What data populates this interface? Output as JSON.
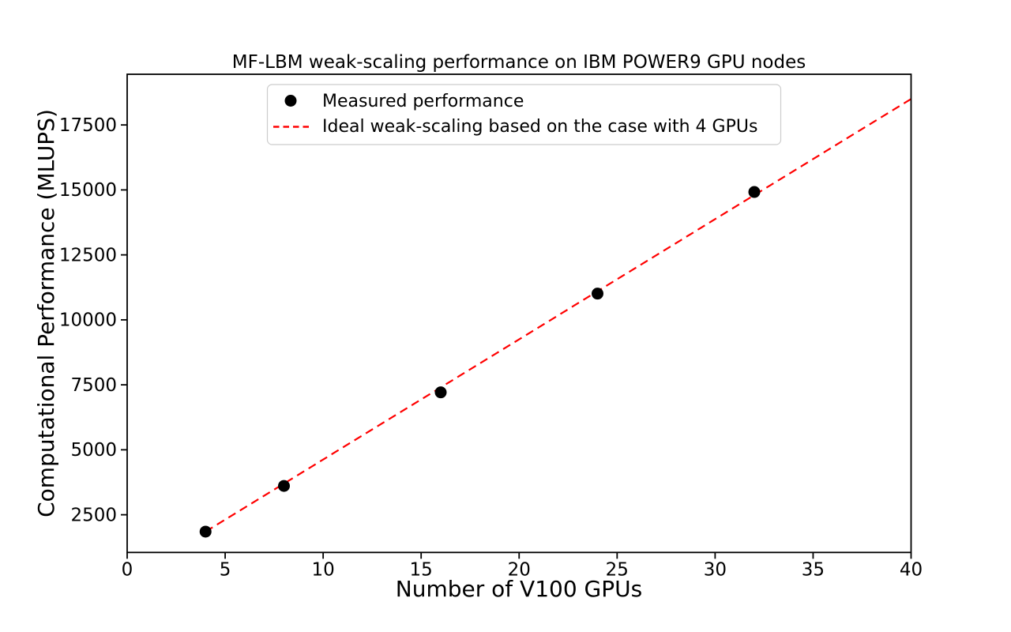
{
  "figure": {
    "background": "#ffffff",
    "axis_color": "#000000",
    "legend_border_color": "#cccccc"
  },
  "chart_data": {
    "type": "scatter",
    "title": "MF-LBM weak-scaling performance on IBM POWER9 GPU nodes",
    "xlabel": "Number of V100 GPUs",
    "ylabel": "Computational Performance (MLUPS)",
    "xlim": [
      0,
      40
    ],
    "ylim": [
      1050,
      19450
    ],
    "x_ticks": [
      0,
      5,
      10,
      15,
      20,
      25,
      30,
      35,
      40
    ],
    "y_ticks": [
      2500,
      5000,
      7500,
      10000,
      12500,
      15000,
      17500
    ],
    "grid": false,
    "legend_position": "upper center",
    "series": [
      {
        "name": "Measured performance",
        "plot_type": "scatter",
        "marker": "circle",
        "color": "#000000",
        "points": [
          [
            4,
            1850
          ],
          [
            8,
            3610
          ],
          [
            16,
            7210
          ],
          [
            24,
            11010
          ],
          [
            32,
            14920
          ]
        ]
      },
      {
        "name": "Ideal weak-scaling based on the case with 4 GPUs",
        "plot_type": "line",
        "line_style": "dashed",
        "color": "#ff0000",
        "points": [
          [
            4,
            1850
          ],
          [
            40,
            18500
          ]
        ]
      }
    ]
  }
}
